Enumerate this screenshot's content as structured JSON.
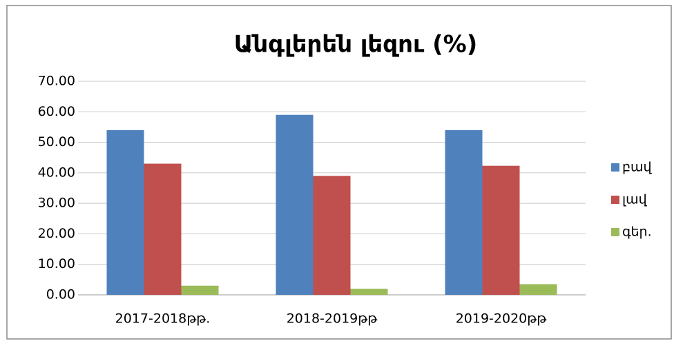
{
  "chart_data": {
    "type": "bar",
    "title": "Անգլերեն լեզու (%)",
    "categories": [
      "2017-2018թթ.",
      "2018-2019թթ",
      "2019-2020թթ"
    ],
    "series": [
      {
        "name": "բավ",
        "color": "#4f81bd",
        "values": [
          54,
          59,
          54
        ]
      },
      {
        "name": "լավ",
        "color": "#c0504d",
        "values": [
          43,
          39,
          42.3
        ]
      },
      {
        "name": "գեր.",
        "color": "#9bbb59",
        "values": [
          3,
          2,
          3.5
        ]
      }
    ],
    "ylim": [
      0,
      70
    ],
    "yticks": [
      {
        "value": 0,
        "label": "0.00"
      },
      {
        "value": 10,
        "label": "10.00"
      },
      {
        "value": 20,
        "label": "20.00"
      },
      {
        "value": 30,
        "label": "30.00"
      },
      {
        "value": 40,
        "label": "40.00"
      },
      {
        "value": 50,
        "label": "50.00"
      },
      {
        "value": 60,
        "label": "60.00"
      },
      {
        "value": 70,
        "label": "70.00"
      }
    ],
    "grid": true,
    "legend": "right"
  }
}
